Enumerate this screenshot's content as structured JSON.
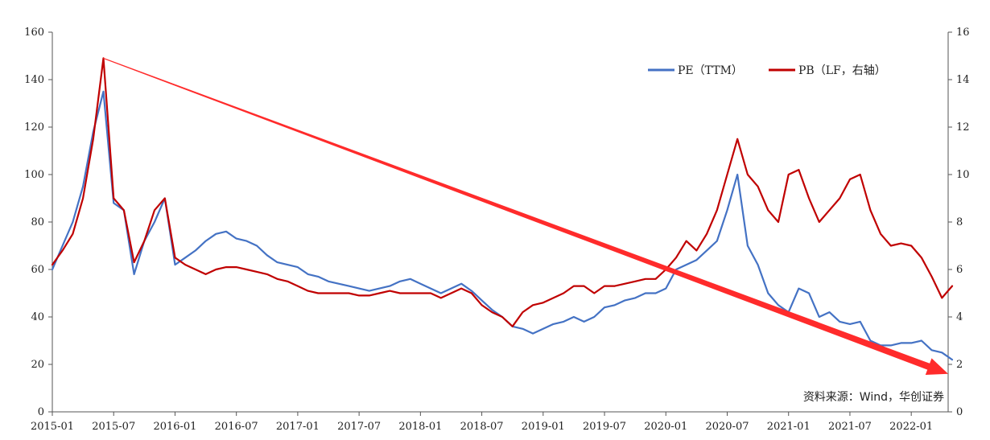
{
  "chart_data": {
    "type": "line",
    "title": "",
    "x": [
      "2015-01",
      "2015-02",
      "2015-03",
      "2015-04",
      "2015-05",
      "2015-06",
      "2015-07",
      "2015-08",
      "2015-09",
      "2015-10",
      "2015-11",
      "2015-12",
      "2016-01",
      "2016-02",
      "2016-03",
      "2016-04",
      "2016-05",
      "2016-06",
      "2016-07",
      "2016-08",
      "2016-09",
      "2016-10",
      "2016-11",
      "2016-12",
      "2017-01",
      "2017-02",
      "2017-03",
      "2017-04",
      "2017-05",
      "2017-06",
      "2017-07",
      "2017-08",
      "2017-09",
      "2017-10",
      "2017-11",
      "2017-12",
      "2018-01",
      "2018-02",
      "2018-03",
      "2018-04",
      "2018-05",
      "2018-06",
      "2018-07",
      "2018-08",
      "2018-09",
      "2018-10",
      "2018-11",
      "2018-12",
      "2019-01",
      "2019-02",
      "2019-03",
      "2019-04",
      "2019-05",
      "2019-06",
      "2019-07",
      "2019-08",
      "2019-09",
      "2019-10",
      "2019-11",
      "2019-12",
      "2020-01",
      "2020-02",
      "2020-03",
      "2020-04",
      "2020-05",
      "2020-06",
      "2020-07",
      "2020-08",
      "2020-09",
      "2020-10",
      "2020-11",
      "2020-12",
      "2021-01",
      "2021-02",
      "2021-03",
      "2021-04",
      "2021-05",
      "2021-06",
      "2021-07",
      "2021-08",
      "2021-09",
      "2021-10",
      "2021-11",
      "2021-12",
      "2022-01",
      "2022-02",
      "2022-03",
      "2022-04",
      "2022-05"
    ],
    "x_tick_labels": [
      "2015-01",
      "2015-07",
      "2016-01",
      "2016-07",
      "2017-01",
      "2017-07",
      "2018-01",
      "2018-07",
      "2019-01",
      "2019-07",
      "2020-01",
      "2020-07",
      "2021-01",
      "2021-07",
      "2022-01"
    ],
    "left_axis": {
      "ylim": [
        0,
        160
      ],
      "ticks": [
        "0",
        "20",
        "40",
        "60",
        "80",
        "100",
        "120",
        "140",
        "160"
      ]
    },
    "right_axis": {
      "ylim": [
        0,
        16
      ],
      "ticks": [
        "0",
        "2",
        "4",
        "6",
        "8",
        "10",
        "12",
        "14",
        "16"
      ]
    },
    "series": [
      {
        "name": "PE（TTM）",
        "axis": "left",
        "color": "#4472C4",
        "values": [
          60,
          70,
          80,
          95,
          118,
          135,
          88,
          85,
          58,
          72,
          80,
          90,
          62,
          65,
          68,
          72,
          75,
          76,
          73,
          72,
          70,
          66,
          63,
          62,
          61,
          58,
          57,
          55,
          54,
          53,
          52,
          51,
          52,
          53,
          55,
          56,
          54,
          52,
          50,
          52,
          54,
          51,
          47,
          43,
          40,
          36,
          35,
          33,
          35,
          37,
          38,
          40,
          38,
          40,
          44,
          45,
          47,
          48,
          50,
          50,
          52,
          60,
          62,
          64,
          68,
          72,
          85,
          100,
          70,
          62,
          50,
          45,
          42,
          52,
          50,
          40,
          42,
          38,
          37,
          38,
          30,
          28,
          28,
          29,
          29,
          30,
          26,
          25,
          22
        ]
      },
      {
        "name": "PB（LF，右轴）",
        "axis": "right",
        "color": "#C00000",
        "values": [
          6.2,
          6.8,
          7.5,
          9.0,
          11.5,
          14.9,
          9.0,
          8.5,
          6.3,
          7.2,
          8.5,
          9.0,
          6.5,
          6.2,
          6.0,
          5.8,
          6.0,
          6.1,
          6.1,
          6.0,
          5.9,
          5.8,
          5.6,
          5.5,
          5.3,
          5.1,
          5.0,
          5.0,
          5.0,
          5.0,
          4.9,
          4.9,
          5.0,
          5.1,
          5.0,
          5.0,
          5.0,
          5.0,
          4.8,
          5.0,
          5.2,
          5.0,
          4.5,
          4.2,
          4.0,
          3.6,
          4.2,
          4.5,
          4.6,
          4.8,
          5.0,
          5.3,
          5.3,
          5.0,
          5.3,
          5.3,
          5.4,
          5.5,
          5.6,
          5.6,
          6.0,
          6.5,
          7.2,
          6.8,
          7.5,
          8.5,
          10.0,
          11.5,
          10.0,
          9.5,
          8.5,
          8.0,
          10.0,
          10.2,
          9.0,
          8.0,
          8.5,
          9.0,
          9.8,
          10.0,
          8.5,
          7.5,
          7.0,
          7.1,
          7.0,
          6.5,
          5.7,
          4.8,
          5.3
        ]
      }
    ],
    "legend": {
      "position": "top-right"
    },
    "annotations": [
      {
        "type": "arrow",
        "color": "#FF2B2B",
        "from": {
          "x": "2015-06",
          "y_right": 14.9
        },
        "to": {
          "x": "2022-05",
          "y_right": 1.6
        }
      }
    ],
    "source": "资料来源：Wind，华创证券",
    "grid": false
  }
}
